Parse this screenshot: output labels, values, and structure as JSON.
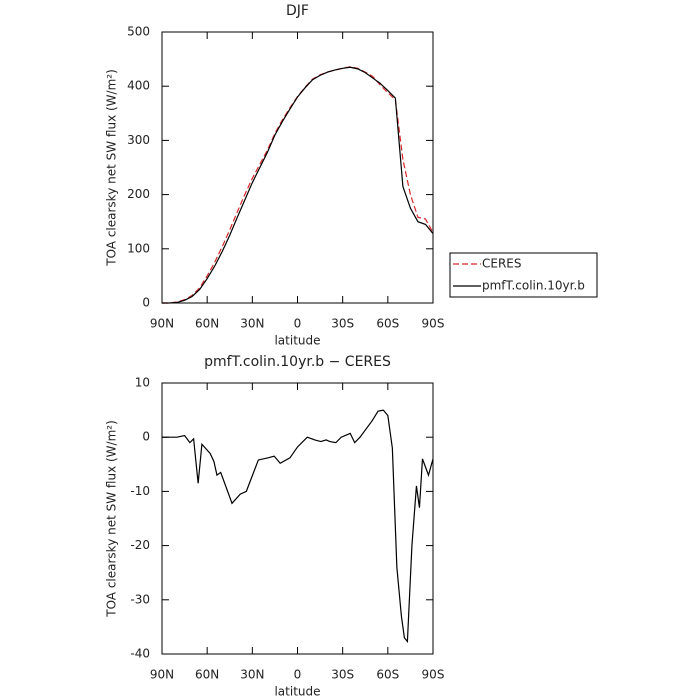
{
  "chart_data": [
    {
      "type": "line",
      "title": "DJF",
      "x_label": "latitude",
      "y_label": "TOA clearsky net SW flux (W/m²)",
      "x": [
        90,
        85,
        80,
        75,
        70,
        65,
        60,
        55,
        50,
        45,
        40,
        35,
        30,
        25,
        20,
        15,
        10,
        5,
        0,
        -5,
        -10,
        -15,
        -20,
        -25,
        -30,
        -35,
        -40,
        -45,
        -50,
        -55,
        -60,
        -65,
        -70,
        -75,
        -80,
        -85,
        -90
      ],
      "series": [
        {
          "name": "CERES",
          "color": "#d62728",
          "line_style": "dashed",
          "values": [
            0,
            0,
            2,
            6,
            14,
            28,
            50,
            75,
            104,
            135,
            168,
            200,
            230,
            256,
            282,
            313,
            338,
            360,
            381,
            398,
            413,
            421,
            426,
            430,
            433,
            436,
            433,
            426,
            418,
            402,
            388,
            375,
            265,
            200,
            158,
            155,
            130
          ]
        },
        {
          "name": "pmfT.colin.10yr.b",
          "color": "#000000",
          "line_style": "solid",
          "values": [
            0,
            0,
            1,
            5,
            12,
            25,
            45,
            68,
            95,
            125,
            158,
            190,
            222,
            250,
            278,
            310,
            335,
            358,
            380,
            397,
            412,
            420,
            426,
            430,
            433,
            435,
            432,
            425,
            415,
            405,
            392,
            378,
            215,
            175,
            150,
            145,
            128
          ]
        }
      ],
      "xlim": [
        90,
        -90
      ],
      "xticks": [
        {
          "value": 90,
          "label": "90N"
        },
        {
          "value": 60,
          "label": "60N"
        },
        {
          "value": 30,
          "label": "30N"
        },
        0,
        {
          "value": -30,
          "label": "30S"
        },
        {
          "value": -60,
          "label": "60S"
        },
        {
          "value": -90,
          "label": "90S"
        }
      ],
      "ylim": [
        0,
        500
      ],
      "yticks": [
        0,
        100,
        200,
        300,
        400,
        500
      ],
      "legend": "right"
    },
    {
      "type": "line",
      "title": "pmfT.colin.10yr.b − CERES",
      "x_label": "latitude",
      "y_label": "TOA clearsky net SW flux (W/m²)",
      "x": [
        90,
        80,
        75,
        71.5,
        69,
        66,
        63.5,
        58,
        55.5,
        53.5,
        51,
        43.5,
        38,
        34,
        26,
        19.5,
        15.5,
        11.5,
        5,
        0,
        -6.5,
        -11.5,
        -15.5,
        -19,
        -21.5,
        -25.5,
        -29,
        -35,
        -38,
        -41.5,
        -49.5,
        -53.5,
        -57,
        -60,
        -63,
        -66,
        -69,
        -71,
        -73,
        -76,
        -79,
        -81,
        -83,
        -87,
        -90
      ],
      "series": [
        {
          "color": "#000000",
          "line_style": "solid",
          "values": [
            0,
            0,
            0.3,
            -1,
            -0.3,
            -8.5,
            -1.3,
            -3,
            -4.5,
            -7,
            -6.5,
            -12.2,
            -10.5,
            -10,
            -4.2,
            -3.8,
            -3.5,
            -4.8,
            -3.8,
            -1.8,
            0,
            -0.5,
            -0.8,
            -0.5,
            -0.8,
            -1,
            0,
            0.7,
            -1,
            0,
            3,
            4.8,
            5,
            4,
            -2,
            -24,
            -33,
            -37,
            -37.7,
            -20,
            -9,
            -13,
            -4,
            -7,
            -4
          ]
        }
      ],
      "xlim": [
        90,
        -90
      ],
      "xticks": [
        {
          "value": 90,
          "label": "90N"
        },
        {
          "value": 60,
          "label": "60N"
        },
        {
          "value": 30,
          "label": "30N"
        },
        0,
        {
          "value": -30,
          "label": "30S"
        },
        {
          "value": -60,
          "label": "60S"
        },
        {
          "value": -90,
          "label": "90S"
        }
      ],
      "ylim": [
        -40,
        10
      ],
      "yticks": [
        -40,
        -30,
        -20,
        -10,
        0,
        10
      ]
    }
  ]
}
